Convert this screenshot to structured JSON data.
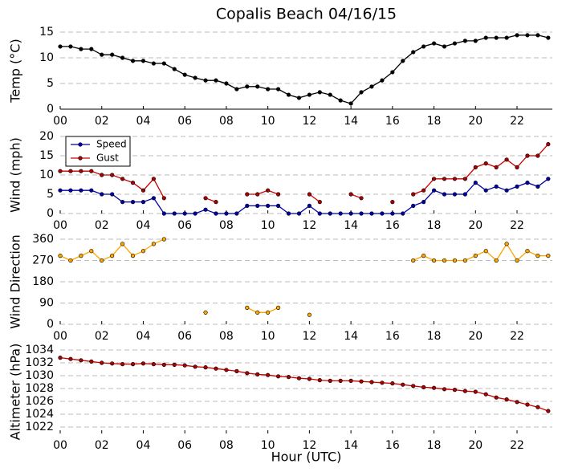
{
  "chart_data": [
    {
      "type": "line",
      "title": "Copalis Beach 04/16/15",
      "ylabel": "Temp (°C)",
      "x": [
        0,
        0.5,
        1,
        1.5,
        2,
        2.5,
        3,
        3.5,
        4,
        4.5,
        5,
        5.5,
        6,
        6.5,
        7,
        7.5,
        8,
        8.5,
        9,
        9.5,
        10,
        10.5,
        11,
        11.5,
        12,
        12.5,
        13,
        13.5,
        14,
        14.5,
        15,
        15.5,
        16,
        16.5,
        17,
        17.5,
        18,
        18.5,
        19,
        19.5,
        20,
        20.5,
        21,
        21.5,
        22,
        22.5,
        23,
        23.5
      ],
      "series": [
        {
          "name": "Temp",
          "color": "#000000",
          "marker_color": "#000000",
          "values": [
            12.2,
            12.2,
            11.7,
            11.7,
            10.6,
            10.6,
            10,
            9.4,
            9.4,
            8.9,
            8.9,
            7.8,
            6.7,
            6.1,
            5.6,
            5.6,
            5,
            3.9,
            4.4,
            4.4,
            3.9,
            3.9,
            2.8,
            2.2,
            2.8,
            3.3,
            2.8,
            1.7,
            1.1,
            3.3,
            4.4,
            5.6,
            7.2,
            9.4,
            11.1,
            12.2,
            12.8,
            12.2,
            12.8,
            13.3,
            13.3,
            13.9,
            13.9,
            13.9,
            14.4,
            14.4,
            14.4,
            13.9
          ]
        }
      ],
      "xlim": [
        0,
        23.7
      ],
      "ylim": [
        0,
        15
      ],
      "yticks": [
        0,
        5,
        10,
        15
      ],
      "xticks": [
        {
          "value": 0,
          "label": "00"
        },
        {
          "value": 2,
          "label": "02"
        },
        {
          "value": 4,
          "label": "04"
        },
        {
          "value": 6,
          "label": "06"
        },
        {
          "value": 8,
          "label": "08"
        },
        {
          "value": 10,
          "label": "10"
        },
        {
          "value": 12,
          "label": "12"
        },
        {
          "value": 14,
          "label": "14"
        },
        {
          "value": 16,
          "label": "16"
        },
        {
          "value": 18,
          "label": "18"
        },
        {
          "value": 20,
          "label": "20"
        },
        {
          "value": 22,
          "label": "22"
        }
      ],
      "grid": true,
      "axis_line": true
    },
    {
      "type": "line",
      "ylabel": "Wind (mph)",
      "legend": "upper left",
      "x": [
        0,
        0.5,
        1,
        1.5,
        2,
        2.5,
        3,
        3.5,
        4,
        4.5,
        5,
        5.5,
        6,
        6.5,
        7,
        7.5,
        8,
        8.5,
        9,
        9.5,
        10,
        10.5,
        11,
        11.5,
        12,
        12.5,
        13,
        13.5,
        14,
        14.5,
        15,
        15.5,
        16,
        16.5,
        17,
        17.5,
        18,
        18.5,
        19,
        19.5,
        20,
        20.5,
        21,
        21.5,
        22,
        22.5,
        23,
        23.5
      ],
      "series": [
        {
          "name": "Speed",
          "color": "#0000aa",
          "marker_color": "#0000aa",
          "values": [
            6,
            6,
            6,
            6,
            5,
            5,
            3,
            3,
            3,
            4,
            0,
            0,
            0,
            0,
            1,
            0,
            0,
            0,
            2,
            2,
            2,
            2,
            0,
            0,
            2,
            0,
            0,
            0,
            0,
            0,
            0,
            0,
            0,
            0,
            2,
            3,
            6,
            5,
            5,
            5,
            8,
            6,
            7,
            6,
            7,
            8,
            7,
            9
          ]
        },
        {
          "name": "Gust",
          "color": "#cc0000",
          "marker_color": "#aa0000",
          "values": [
            11,
            11,
            11,
            11,
            10,
            10,
            9,
            8,
            6,
            9,
            4,
            null,
            null,
            null,
            4,
            3,
            null,
            null,
            5,
            5,
            6,
            5,
            null,
            null,
            5,
            3,
            null,
            null,
            5,
            4,
            null,
            null,
            3,
            null,
            5,
            6,
            9,
            9,
            9,
            9,
            12,
            13,
            12,
            14,
            12,
            15,
            15,
            18
          ]
        }
      ],
      "xlim": [
        0,
        23.7
      ],
      "ylim": [
        0,
        20
      ],
      "yticks": [
        0,
        5,
        10,
        15,
        20
      ],
      "xticks": [
        {
          "value": 0,
          "label": "00"
        },
        {
          "value": 2,
          "label": "02"
        },
        {
          "value": 4,
          "label": "04"
        },
        {
          "value": 6,
          "label": "06"
        },
        {
          "value": 8,
          "label": "08"
        },
        {
          "value": 10,
          "label": "10"
        },
        {
          "value": 12,
          "label": "12"
        },
        {
          "value": 14,
          "label": "14"
        },
        {
          "value": 16,
          "label": "16"
        },
        {
          "value": 18,
          "label": "18"
        },
        {
          "value": 20,
          "label": "20"
        },
        {
          "value": 22,
          "label": "22"
        }
      ],
      "grid": true
    },
    {
      "type": "line",
      "ylabel": "Wind Direction",
      "x": [
        0,
        0.5,
        1,
        1.5,
        2,
        2.5,
        3,
        3.5,
        4,
        4.5,
        5,
        5.5,
        6,
        6.5,
        7,
        7.5,
        8,
        8.5,
        9,
        9.5,
        10,
        10.5,
        11,
        11.5,
        12,
        12.5,
        13,
        13.5,
        14,
        14.5,
        15,
        15.5,
        16,
        16.5,
        17,
        17.5,
        18,
        18.5,
        19,
        19.5,
        20,
        20.5,
        21,
        21.5,
        22,
        22.5,
        23,
        23.5
      ],
      "series": [
        {
          "name": "Direction",
          "color": "#ffa500",
          "marker_color": "#ffa500",
          "values": [
            290,
            270,
            290,
            310,
            270,
            290,
            340,
            290,
            310,
            340,
            360,
            null,
            null,
            null,
            50,
            null,
            null,
            null,
            70,
            50,
            50,
            70,
            null,
            null,
            40,
            null,
            null,
            null,
            null,
            null,
            null,
            null,
            null,
            null,
            270,
            290,
            270,
            270,
            270,
            270,
            290,
            310,
            270,
            340,
            270,
            310,
            290,
            290
          ]
        }
      ],
      "xlim": [
        0,
        23.7
      ],
      "ylim": [
        0,
        360
      ],
      "yticks": [
        0,
        90,
        180,
        270,
        360
      ],
      "xticks": [
        {
          "value": 0,
          "label": "00"
        },
        {
          "value": 2,
          "label": "02"
        },
        {
          "value": 4,
          "label": "04"
        },
        {
          "value": 6,
          "label": "06"
        },
        {
          "value": 8,
          "label": "08"
        },
        {
          "value": 10,
          "label": "10"
        },
        {
          "value": 12,
          "label": "12"
        },
        {
          "value": 14,
          "label": "14"
        },
        {
          "value": 16,
          "label": "16"
        },
        {
          "value": 18,
          "label": "18"
        },
        {
          "value": 20,
          "label": "20"
        },
        {
          "value": 22,
          "label": "22"
        }
      ],
      "grid": true
    },
    {
      "type": "line",
      "ylabel": "Altimeter (hPa)",
      "xlabel": "Hour (UTC)",
      "x": [
        0,
        0.5,
        1,
        1.5,
        2,
        2.5,
        3,
        3.5,
        4,
        4.5,
        5,
        5.5,
        6,
        6.5,
        7,
        7.5,
        8,
        8.5,
        9,
        9.5,
        10,
        10.5,
        11,
        11.5,
        12,
        12.5,
        13,
        13.5,
        14,
        14.5,
        15,
        15.5,
        16,
        16.5,
        17,
        17.5,
        18,
        18.5,
        19,
        19.5,
        20,
        20.5,
        21,
        21.5,
        22,
        22.5,
        23,
        23.5
      ],
      "series": [
        {
          "name": "Altimeter",
          "color": "#cc0000",
          "marker_color": "#aa0000",
          "values": [
            1032.8,
            1032.6,
            1032.4,
            1032.2,
            1032,
            1031.9,
            1031.8,
            1031.8,
            1031.9,
            1031.8,
            1031.7,
            1031.7,
            1031.6,
            1031.4,
            1031.3,
            1031.1,
            1030.9,
            1030.7,
            1030.4,
            1030.2,
            1030.1,
            1029.9,
            1029.8,
            1029.6,
            1029.5,
            1029.3,
            1029.2,
            1029.2,
            1029.2,
            1029.1,
            1029,
            1028.9,
            1028.8,
            1028.6,
            1028.4,
            1028.2,
            1028.1,
            1027.9,
            1027.8,
            1027.6,
            1027.5,
            1027.1,
            1026.6,
            1026.3,
            1025.9,
            1025.5,
            1025.1,
            1024.5
          ]
        }
      ],
      "xlim": [
        0,
        23.7
      ],
      "ylim": [
        1021,
        1034
      ],
      "yticks": [
        1022,
        1024,
        1026,
        1028,
        1030,
        1032,
        1034
      ],
      "xticks": [
        {
          "value": 0,
          "label": "00"
        },
        {
          "value": 2,
          "label": "02"
        },
        {
          "value": 4,
          "label": "04"
        },
        {
          "value": 6,
          "label": "06"
        },
        {
          "value": 8,
          "label": "08"
        },
        {
          "value": 10,
          "label": "10"
        },
        {
          "value": 12,
          "label": "12"
        },
        {
          "value": 14,
          "label": "14"
        },
        {
          "value": 16,
          "label": "16"
        },
        {
          "value": 18,
          "label": "18"
        },
        {
          "value": 20,
          "label": "20"
        },
        {
          "value": 22,
          "label": "22"
        }
      ],
      "grid": true
    }
  ]
}
